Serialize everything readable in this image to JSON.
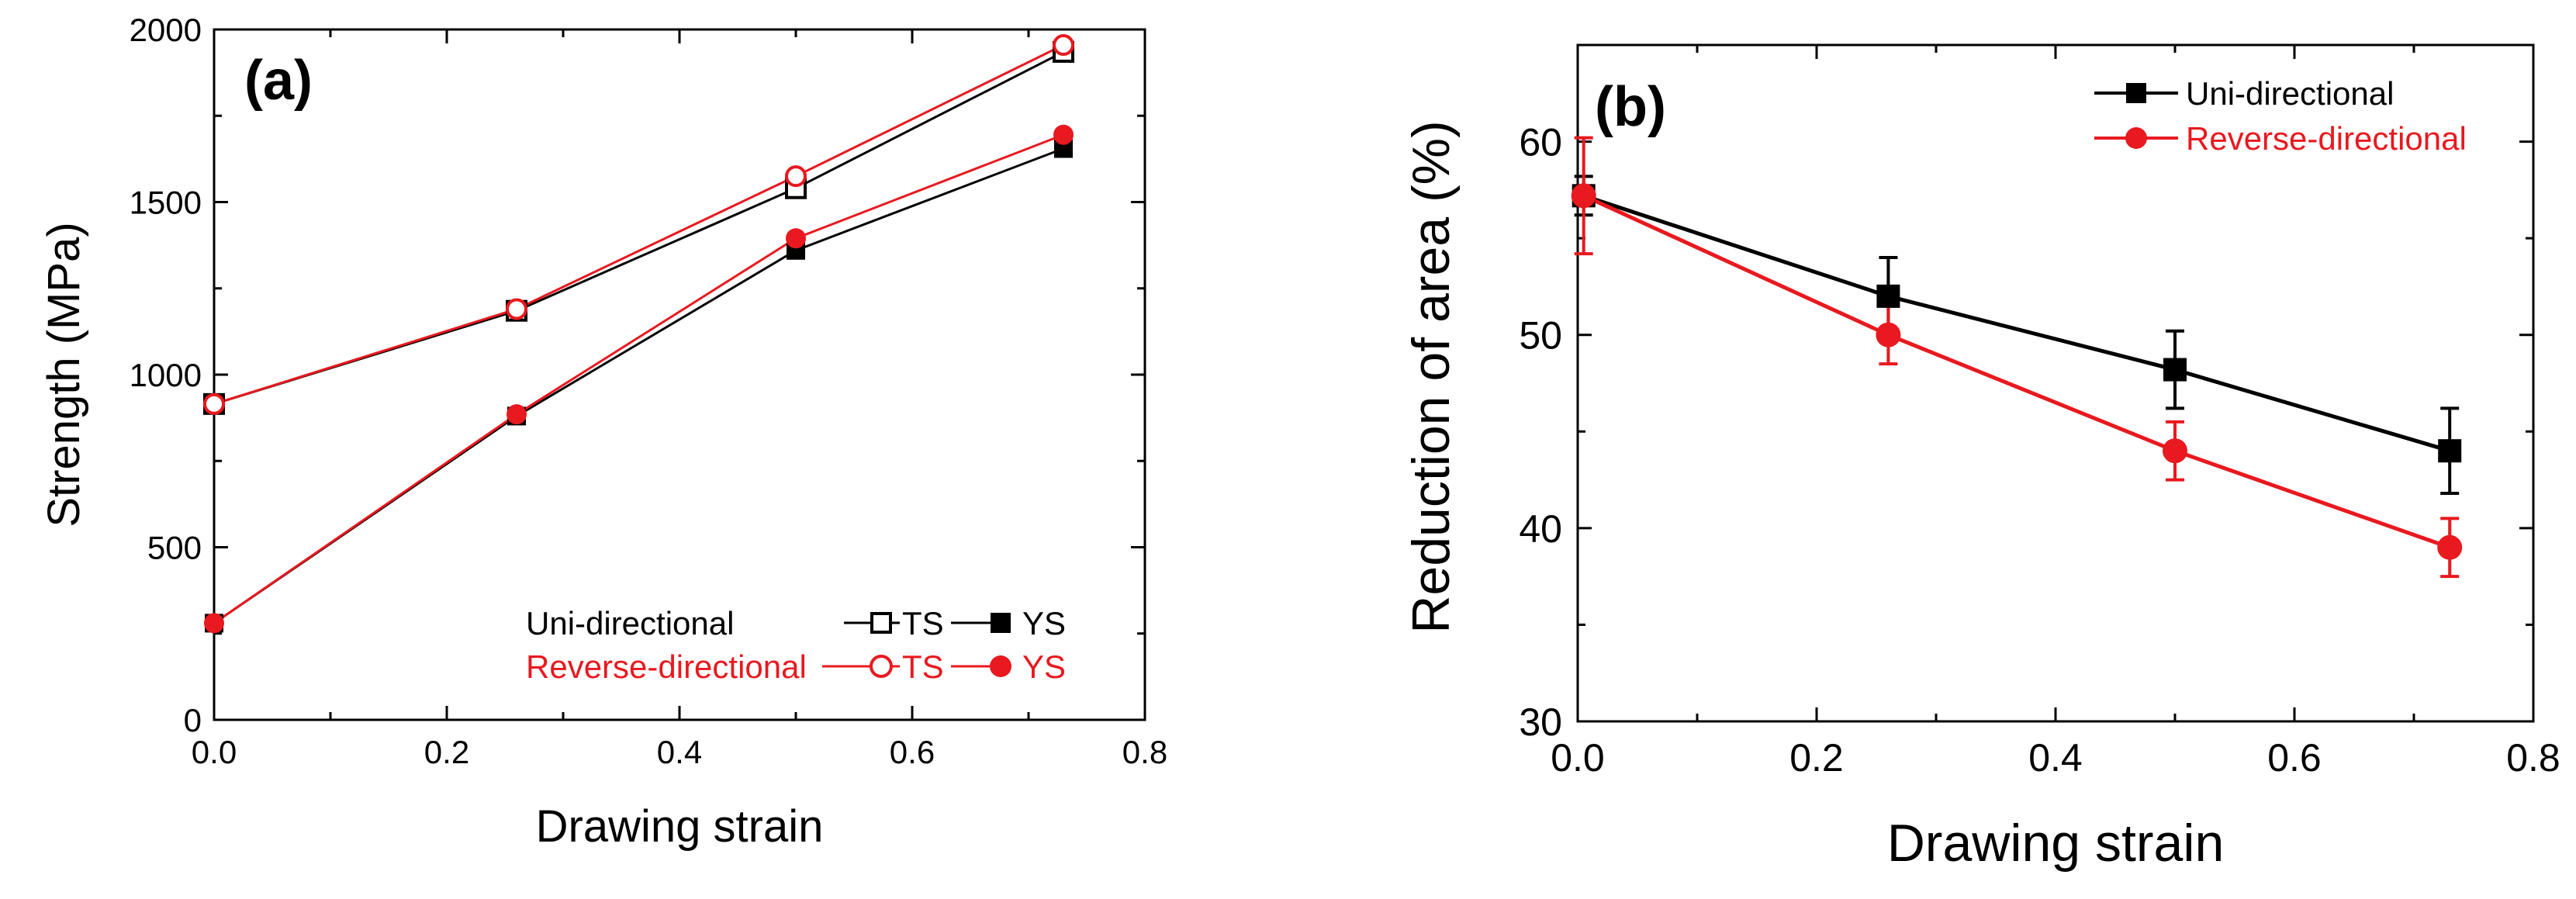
{
  "chart_data": [
    {
      "type": "line",
      "panel_label": "(a)",
      "xlabel": "Drawing strain",
      "ylabel": "Strength (MPa)",
      "xlim": [
        0.0,
        0.8
      ],
      "ylim": [
        0,
        2000
      ],
      "x_ticks": [
        0.0,
        0.2,
        0.4,
        0.6,
        0.8
      ],
      "x_tick_labels": [
        "0.0",
        "0.2",
        "0.4",
        "0.6",
        "0.8"
      ],
      "y_ticks": [
        0,
        500,
        1000,
        1500,
        2000
      ],
      "y_tick_labels": [
        "0",
        "500",
        "1000",
        "1500",
        "2000"
      ],
      "grid": false,
      "legend": {
        "position": "bottom-right",
        "rows": [
          {
            "label": "Uni-directional",
            "color": "#000000",
            "entries": [
              "TS",
              "YS"
            ]
          },
          {
            "label": "Reverse-directional",
            "color": "#e8191f",
            "entries": [
              "TS",
              "YS"
            ]
          }
        ]
      },
      "series": [
        {
          "name": "Uni-directional TS",
          "group": "Uni-directional",
          "metric": "TS",
          "color": "#000000",
          "marker": "square-open",
          "x": [
            0.0,
            0.26,
            0.5,
            0.73
          ],
          "y": [
            915,
            1185,
            1540,
            1935
          ]
        },
        {
          "name": "Uni-directional YS",
          "group": "Uni-directional",
          "metric": "YS",
          "color": "#000000",
          "marker": "square-filled",
          "x": [
            0.0,
            0.26,
            0.5,
            0.73
          ],
          "y": [
            280,
            880,
            1360,
            1655
          ]
        },
        {
          "name": "Reverse-directional TS",
          "group": "Reverse-directional",
          "metric": "TS",
          "color": "#e8191f",
          "marker": "circle-open",
          "x": [
            0.0,
            0.26,
            0.5,
            0.73
          ],
          "y": [
            915,
            1190,
            1575,
            1955
          ]
        },
        {
          "name": "Reverse-directional YS",
          "group": "Reverse-directional",
          "metric": "YS",
          "color": "#e8191f",
          "marker": "circle-filled",
          "x": [
            0.0,
            0.26,
            0.5,
            0.73
          ],
          "y": [
            280,
            885,
            1395,
            1695
          ]
        }
      ]
    },
    {
      "type": "line",
      "panel_label": "(b)",
      "xlabel": "Drawing strain",
      "ylabel": "Reduction of area (%)",
      "xlim": [
        0.0,
        0.8
      ],
      "ylim": [
        30,
        65
      ],
      "x_ticks": [
        0.0,
        0.2,
        0.4,
        0.6,
        0.8
      ],
      "x_tick_labels": [
        "0.0",
        "0.2",
        "0.4",
        "0.6",
        "0.8"
      ],
      "y_ticks": [
        30,
        40,
        50,
        60
      ],
      "y_tick_labels": [
        "30",
        "40",
        "50",
        "60"
      ],
      "grid": false,
      "legend": {
        "position": "top-right"
      },
      "series": [
        {
          "name": "Uni-directional",
          "color": "#000000",
          "marker": "square-filled",
          "x": [
            0.005,
            0.26,
            0.5,
            0.73
          ],
          "y": [
            57.2,
            52.0,
            48.2,
            44.0
          ],
          "error": [
            1.0,
            2.0,
            2.0,
            2.2
          ]
        },
        {
          "name": "Reverse-directional",
          "color": "#e8191f",
          "marker": "circle-filled",
          "x": [
            0.005,
            0.26,
            0.5,
            0.73
          ],
          "y": [
            57.2,
            50.0,
            44.0,
            39.0
          ],
          "error": [
            3.0,
            1.5,
            1.5,
            1.5
          ]
        }
      ]
    }
  ]
}
